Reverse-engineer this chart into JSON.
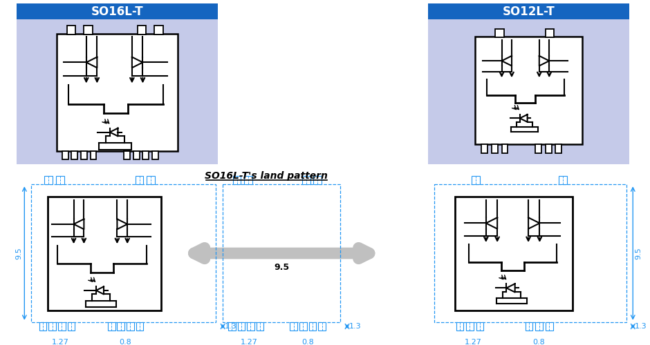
{
  "so16l_title": "SO16L-T",
  "so12l_title": "SO12L-T",
  "land_pattern_title": "SO16L-T's land pattern",
  "header_color": "#1565C0",
  "header_text_color": "#FFFFFF",
  "bg_color": "#C5CAE9",
  "dim_color": "#2196F3",
  "dim_9p5": "9.5",
  "dim_1p3": "1.3",
  "dim_1p27": "1.27",
  "dim_0p8": "0.8",
  "figure_bg": "#FFFFFF"
}
